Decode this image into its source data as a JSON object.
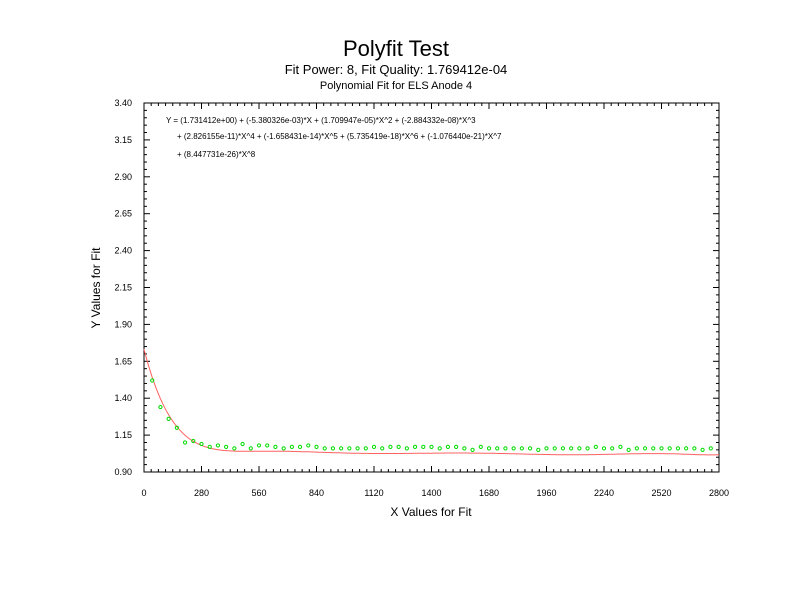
{
  "title": "Polyfit Test",
  "subtitle": "Fit Power: 8, Fit Quality: 1.769412e-04",
  "subtitle2": "Polynomial Fit for ELS Anode 4",
  "equation": [
    "Y = (1.731412e+00) + (-5.380326e-03)*X + (1.709947e-05)*X^2 + (-2.884332e-08)*X^3",
    "+ (2.826155e-11)*X^4 + (-1.658431e-14)*X^5 + (5.735419e-18)*X^6 + (-1.076440e-21)*X^7",
    "+ (8.447731e-26)*X^8"
  ],
  "colors": {
    "fit_line": "#ff6060",
    "points": "#00dd00",
    "frame": "#000000"
  },
  "chart_data": {
    "type": "scatter",
    "xlabel": "X Values for Fit",
    "ylabel": "Y Values for Fit",
    "xlim": [
      0,
      2800
    ],
    "ylim": [
      0.9,
      3.4
    ],
    "xticks": [
      0,
      280,
      560,
      840,
      1120,
      1400,
      1680,
      1960,
      2240,
      2520,
      2800
    ],
    "yticks": [
      0.9,
      1.15,
      1.4,
      1.65,
      1.9,
      2.15,
      2.4,
      2.65,
      2.9,
      3.15,
      3.4
    ],
    "xtick_labels": [
      "0",
      "280",
      "560",
      "840",
      "1120",
      "1400",
      "1680",
      "1960",
      "2240",
      "2520",
      "2800"
    ],
    "ytick_labels": [
      "0.90",
      "1.15",
      "1.40",
      "1.65",
      "1.90",
      "2.15",
      "2.40",
      "2.65",
      "2.90",
      "3.15",
      "3.40"
    ],
    "grid": false,
    "fit_coefficients": [
      1.731412,
      -0.005380326,
      1.709947e-05,
      -2.884332e-08,
      2.826155e-11,
      -1.658431e-14,
      5.735419e-18,
      -1.07644e-21,
      8.447731e-26
    ],
    "series": [
      {
        "x": [
          40,
          80,
          120,
          160,
          200,
          240,
          280,
          320,
          360,
          400,
          440,
          480,
          520,
          560,
          600,
          640,
          680,
          720,
          760,
          800,
          840,
          880,
          920,
          960,
          1000,
          1040,
          1080,
          1120,
          1160,
          1200,
          1240,
          1280,
          1320,
          1360,
          1400,
          1440,
          1480,
          1520,
          1560,
          1600,
          1640,
          1680,
          1720,
          1760,
          1800,
          1840,
          1880,
          1920,
          1960,
          2000,
          2040,
          2080,
          2120,
          2160,
          2200,
          2240,
          2280,
          2320,
          2360,
          2400,
          2440,
          2480,
          2520,
          2560,
          2600,
          2640,
          2680,
          2720,
          2760
        ],
        "y": [
          1.52,
          1.34,
          1.26,
          1.2,
          1.1,
          1.11,
          1.09,
          1.07,
          1.08,
          1.07,
          1.06,
          1.09,
          1.06,
          1.08,
          1.08,
          1.07,
          1.06,
          1.07,
          1.07,
          1.08,
          1.07,
          1.06,
          1.06,
          1.06,
          1.06,
          1.06,
          1.06,
          1.07,
          1.06,
          1.07,
          1.07,
          1.06,
          1.07,
          1.07,
          1.07,
          1.06,
          1.07,
          1.07,
          1.06,
          1.05,
          1.07,
          1.06,
          1.06,
          1.06,
          1.06,
          1.06,
          1.06,
          1.05,
          1.06,
          1.06,
          1.06,
          1.06,
          1.06,
          1.06,
          1.07,
          1.06,
          1.06,
          1.07,
          1.05,
          1.06,
          1.06,
          1.06,
          1.06,
          1.06,
          1.06,
          1.06,
          1.06,
          1.05,
          1.06
        ]
      }
    ]
  }
}
